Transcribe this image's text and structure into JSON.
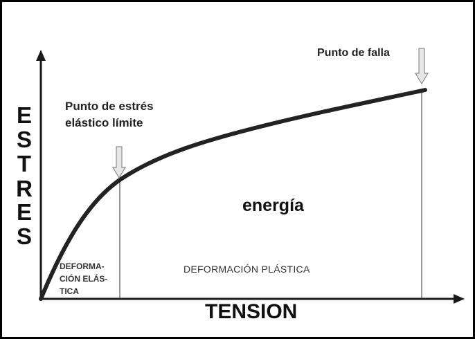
{
  "diagram": {
    "y_axis_letters": [
      "E",
      "S",
      "T",
      "R",
      "E",
      "S"
    ],
    "x_axis_label": "TENSION",
    "elastic_limit_label": [
      "Punto de estrés",
      "elástico límite"
    ],
    "failure_label": "Punto de falla",
    "energy_label": "energía",
    "elastic_zone_label": [
      "DEFORMA-",
      "CIÓN ELÁS-",
      "TICA"
    ],
    "plastic_zone_label": "DEFORMACIÓN PLÁSTICA",
    "colors": {
      "curve": "#222222",
      "axis": "#1a1a1a",
      "arrow_fill": "#e6e6e6",
      "arrow_stroke": "#8a8a8a"
    }
  }
}
